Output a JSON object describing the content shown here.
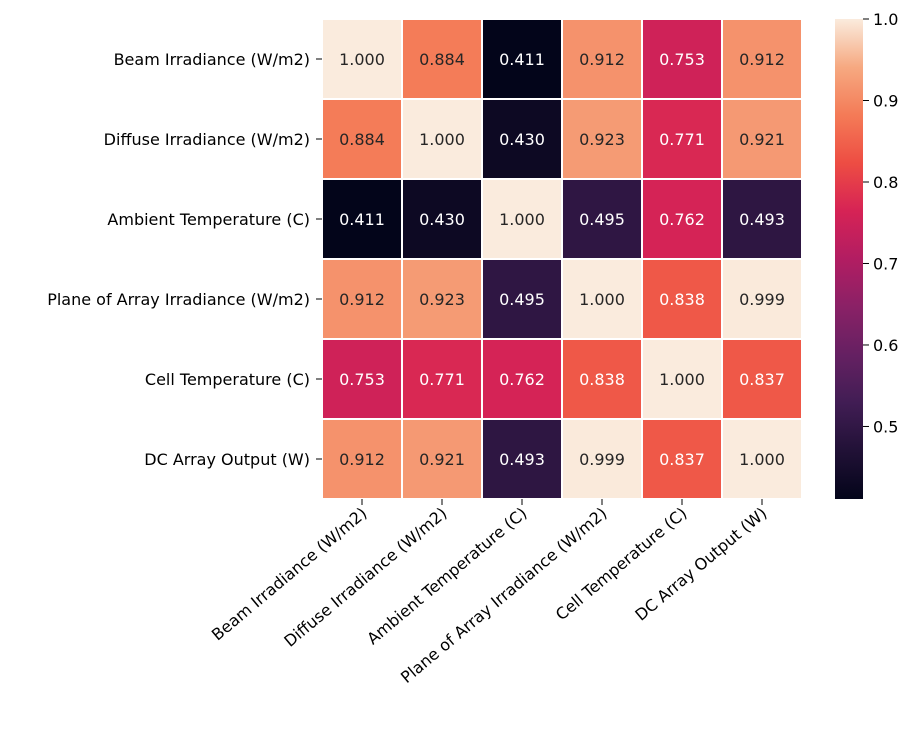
{
  "chart_data": {
    "type": "heatmap",
    "title": "",
    "xlabel": "",
    "ylabel": "",
    "rows": [
      "Beam Irradiance (W/m2)",
      "Diffuse Irradiance (W/m2)",
      "Ambient Temperature (C)",
      "Plane of Array Irradiance (W/m2)",
      "Cell Temperature (C)",
      "DC Array Output (W)"
    ],
    "columns": [
      "Beam Irradiance (W/m2)",
      "Diffuse Irradiance (W/m2)",
      "Ambient Temperature (C)",
      "Plane of Array Irradiance (W/m2)",
      "Cell Temperature (C)",
      "DC Array Output (W)"
    ],
    "values": [
      [
        1.0,
        0.884,
        0.411,
        0.912,
        0.753,
        0.912
      ],
      [
        0.884,
        1.0,
        0.43,
        0.923,
        0.771,
        0.921
      ],
      [
        0.411,
        0.43,
        1.0,
        0.495,
        0.762,
        0.493
      ],
      [
        0.912,
        0.923,
        0.495,
        1.0,
        0.838,
        0.999
      ],
      [
        0.753,
        0.771,
        0.762,
        0.838,
        1.0,
        0.837
      ],
      [
        0.912,
        0.921,
        0.493,
        0.999,
        0.837,
        1.0
      ]
    ],
    "value_labels": [
      [
        "1.000",
        "0.884",
        "0.411",
        "0.912",
        "0.753",
        "0.912"
      ],
      [
        "0.884",
        "1.000",
        "0.430",
        "0.923",
        "0.771",
        "0.921"
      ],
      [
        "0.411",
        "0.430",
        "1.000",
        "0.495",
        "0.762",
        "0.493"
      ],
      [
        "0.912",
        "0.923",
        "0.495",
        "1.000",
        "0.838",
        "0.999"
      ],
      [
        "0.753",
        "0.771",
        "0.762",
        "0.838",
        "1.000",
        "0.837"
      ],
      [
        "0.912",
        "0.921",
        "0.493",
        "0.999",
        "0.837",
        "1.000"
      ]
    ],
    "colormap": "rocket",
    "colorbar": {
      "vmin": 0.411,
      "vmax": 1.0,
      "ticks": [
        0.5,
        0.6,
        0.7,
        0.8,
        0.9,
        1.0
      ],
      "tick_labels": [
        "0.5",
        "0.6",
        "0.7",
        "0.8",
        "0.9",
        "1.0"
      ]
    },
    "cell_border_color": "#ffffff",
    "grid": false
  }
}
